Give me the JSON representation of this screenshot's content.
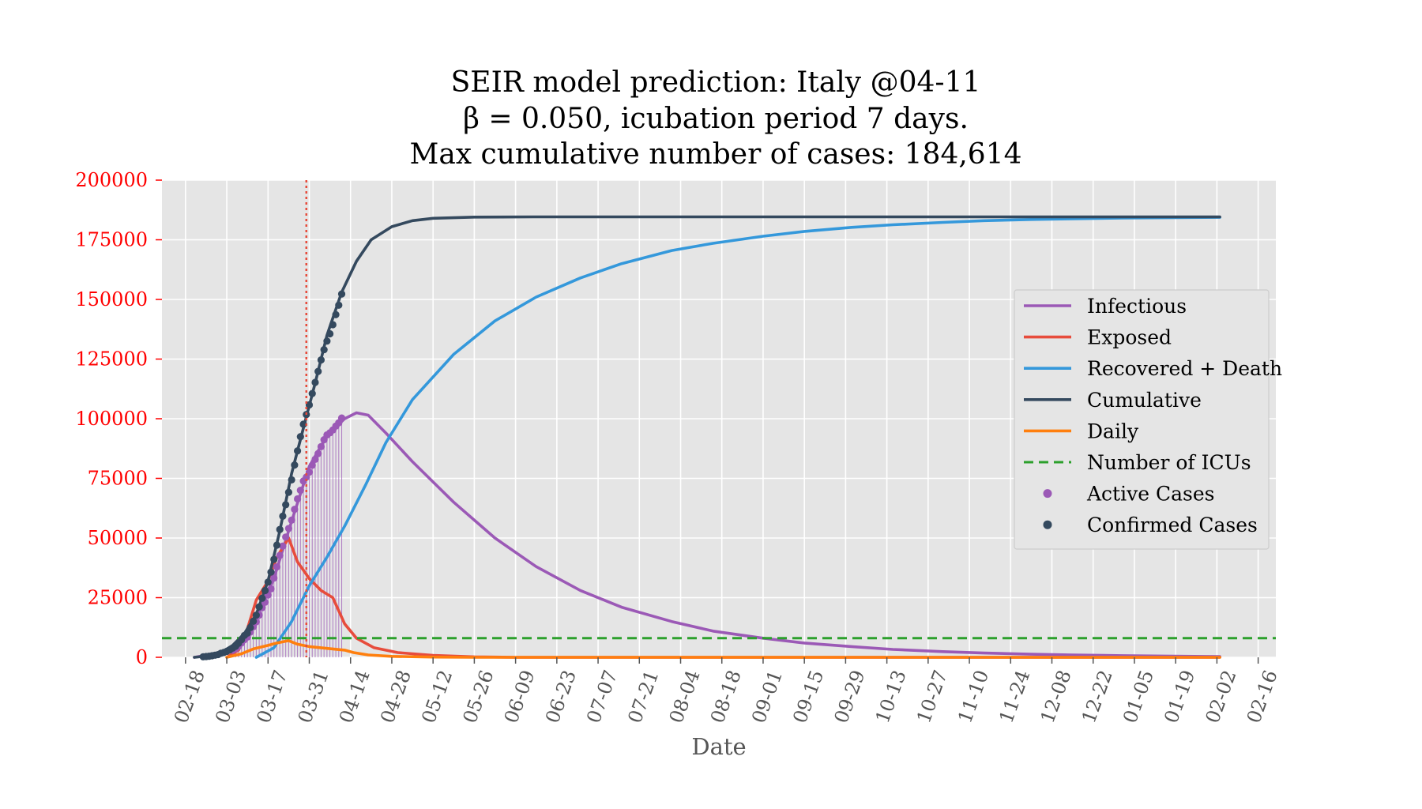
{
  "chart_data": {
    "type": "line",
    "title_lines": [
      "SEIR model prediction: Italy @04-11",
      "β = 0.050, icubation period 7 days.",
      "Max cumulative number of cases: 184,614"
    ],
    "xlabel": "Date",
    "ylabel": "",
    "x_tick_labels": [
      "02-18",
      "03-03",
      "03-17",
      "03-31",
      "04-14",
      "04-28",
      "05-12",
      "05-26",
      "06-09",
      "06-23",
      "07-07",
      "07-21",
      "08-04",
      "08-18",
      "09-01",
      "09-15",
      "09-29",
      "10-13",
      "10-27",
      "11-10",
      "11-24",
      "12-08",
      "12-22",
      "01-05",
      "01-19",
      "02-02",
      "02-16"
    ],
    "x_tick_start_date": "2020-02-18",
    "x_tick_interval_days": 14,
    "xlim": [
      "2020-02-10",
      "2021-02-22"
    ],
    "y_ticks": [
      0,
      25000,
      50000,
      75000,
      100000,
      125000,
      150000,
      175000,
      200000
    ],
    "ylim": [
      0,
      200000
    ],
    "grid": true,
    "legend_position": "center-right",
    "current_date": "2020-03-30",
    "icu_level": 8000,
    "series": [
      {
        "name": "Infectious",
        "color": "#9b59b6",
        "style": "solid",
        "points": [
          [
            "2020-02-21",
            0
          ],
          [
            "2020-03-01",
            2000
          ],
          [
            "2020-03-07",
            6000
          ],
          [
            "2020-03-13",
            16000
          ],
          [
            "2020-03-19",
            33000
          ],
          [
            "2020-03-25",
            57000
          ],
          [
            "2020-03-31",
            80000
          ],
          [
            "2020-04-06",
            93000
          ],
          [
            "2020-04-12",
            100000
          ],
          [
            "2020-04-16",
            102500
          ],
          [
            "2020-04-20",
            101500
          ],
          [
            "2020-04-26",
            94000
          ],
          [
            "2020-05-05",
            82000
          ],
          [
            "2020-05-19",
            65000
          ],
          [
            "2020-06-02",
            50000
          ],
          [
            "2020-06-16",
            38000
          ],
          [
            "2020-07-01",
            28000
          ],
          [
            "2020-07-15",
            21000
          ],
          [
            "2020-08-01",
            15000
          ],
          [
            "2020-08-15",
            11000
          ],
          [
            "2020-09-01",
            8000
          ],
          [
            "2020-09-15",
            6000
          ],
          [
            "2020-10-01",
            4500
          ],
          [
            "2020-10-15",
            3300
          ],
          [
            "2020-11-01",
            2400
          ],
          [
            "2020-11-15",
            1800
          ],
          [
            "2020-12-01",
            1300
          ],
          [
            "2020-12-15",
            1000
          ],
          [
            "2021-01-01",
            700
          ],
          [
            "2021-02-03",
            300
          ]
        ]
      },
      {
        "name": "Exposed",
        "color": "#e74c3c",
        "style": "solid",
        "points": [
          [
            "2020-03-03",
            0
          ],
          [
            "2020-03-07",
            3000
          ],
          [
            "2020-03-10",
            12000
          ],
          [
            "2020-03-13",
            24000
          ],
          [
            "2020-03-17",
            32000
          ],
          [
            "2020-03-20",
            42000
          ],
          [
            "2020-03-24",
            50000
          ],
          [
            "2020-03-27",
            40000
          ],
          [
            "2020-03-31",
            33000
          ],
          [
            "2020-04-04",
            28000
          ],
          [
            "2020-04-08",
            25000
          ],
          [
            "2020-04-12",
            14000
          ],
          [
            "2020-04-16",
            8000
          ],
          [
            "2020-04-22",
            4000
          ],
          [
            "2020-04-30",
            2000
          ],
          [
            "2020-05-12",
            800
          ],
          [
            "2020-05-26",
            200
          ],
          [
            "2020-06-09",
            0
          ],
          [
            "2021-02-03",
            0
          ]
        ]
      },
      {
        "name": "Recovered + Death",
        "color": "#3498db",
        "style": "solid",
        "points": [
          [
            "2020-03-13",
            0
          ],
          [
            "2020-03-19",
            4000
          ],
          [
            "2020-03-25",
            15000
          ],
          [
            "2020-03-31",
            30000
          ],
          [
            "2020-04-06",
            42000
          ],
          [
            "2020-04-12",
            55000
          ],
          [
            "2020-04-19",
            72000
          ],
          [
            "2020-04-26",
            90000
          ],
          [
            "2020-05-05",
            108000
          ],
          [
            "2020-05-19",
            127000
          ],
          [
            "2020-06-02",
            141000
          ],
          [
            "2020-06-16",
            151000
          ],
          [
            "2020-07-01",
            159000
          ],
          [
            "2020-07-15",
            165000
          ],
          [
            "2020-08-01",
            170500
          ],
          [
            "2020-08-15",
            173500
          ],
          [
            "2020-09-01",
            176500
          ],
          [
            "2020-09-15",
            178500
          ],
          [
            "2020-10-01",
            180200
          ],
          [
            "2020-10-15",
            181300
          ],
          [
            "2020-11-01",
            182300
          ],
          [
            "2020-11-15",
            183000
          ],
          [
            "2020-12-01",
            183500
          ],
          [
            "2020-12-15",
            183800
          ],
          [
            "2021-01-01",
            184100
          ],
          [
            "2021-02-03",
            184400
          ]
        ]
      },
      {
        "name": "Cumulative",
        "color": "#34495e",
        "style": "solid",
        "points": [
          [
            "2020-02-21",
            0
          ],
          [
            "2020-02-25",
            500
          ],
          [
            "2020-03-01",
            2000
          ],
          [
            "2020-03-05",
            5000
          ],
          [
            "2020-03-09",
            10000
          ],
          [
            "2020-03-13",
            18000
          ],
          [
            "2020-03-17",
            32000
          ],
          [
            "2020-03-21",
            53000
          ],
          [
            "2020-03-25",
            77000
          ],
          [
            "2020-03-29",
            96000
          ],
          [
            "2020-04-02",
            115000
          ],
          [
            "2020-04-06",
            135000
          ],
          [
            "2020-04-11",
            153000
          ],
          [
            "2020-04-16",
            166000
          ],
          [
            "2020-04-21",
            175000
          ],
          [
            "2020-04-28",
            180500
          ],
          [
            "2020-05-05",
            183000
          ],
          [
            "2020-05-12",
            184000
          ],
          [
            "2020-05-26",
            184500
          ],
          [
            "2020-06-15",
            184600
          ],
          [
            "2021-02-03",
            184614
          ]
        ]
      },
      {
        "name": "Daily",
        "color": "#ff7f0e",
        "style": "solid",
        "points": [
          [
            "2020-03-03",
            0
          ],
          [
            "2020-03-08",
            1500
          ],
          [
            "2020-03-12",
            3500
          ],
          [
            "2020-03-17",
            5000
          ],
          [
            "2020-03-20",
            6000
          ],
          [
            "2020-03-24",
            7000
          ],
          [
            "2020-03-27",
            5500
          ],
          [
            "2020-03-31",
            4500
          ],
          [
            "2020-04-04",
            4000
          ],
          [
            "2020-04-08",
            3500
          ],
          [
            "2020-04-12",
            3000
          ],
          [
            "2020-04-15",
            2000
          ],
          [
            "2020-04-20",
            1000
          ],
          [
            "2020-04-28",
            400
          ],
          [
            "2020-05-12",
            100
          ],
          [
            "2020-05-26",
            0
          ],
          [
            "2021-02-03",
            0
          ]
        ]
      },
      {
        "name": "Number of ICUs",
        "color": "#2ca02c",
        "style": "dashed",
        "points": [
          [
            "2020-02-10",
            8000
          ],
          [
            "2021-02-22",
            8000
          ]
        ]
      },
      {
        "name": "Active Cases",
        "color": "#9b59b6",
        "style": "markers",
        "stems": true,
        "points": [
          [
            "2020-03-05",
            3000
          ],
          [
            "2020-03-06",
            3600
          ],
          [
            "2020-03-07",
            4600
          ],
          [
            "2020-03-08",
            6000
          ],
          [
            "2020-03-09",
            7400
          ],
          [
            "2020-03-10",
            8500
          ],
          [
            "2020-03-11",
            10600
          ],
          [
            "2020-03-12",
            12800
          ],
          [
            "2020-03-13",
            14900
          ],
          [
            "2020-03-14",
            17700
          ],
          [
            "2020-03-15",
            20800
          ],
          [
            "2020-03-16",
            23100
          ],
          [
            "2020-03-17",
            26100
          ],
          [
            "2020-03-18",
            28700
          ],
          [
            "2020-03-19",
            33200
          ],
          [
            "2020-03-20",
            37900
          ],
          [
            "2020-03-21",
            42700
          ],
          [
            "2020-03-22",
            46600
          ],
          [
            "2020-03-23",
            50400
          ],
          [
            "2020-03-24",
            54000
          ],
          [
            "2020-03-25",
            57500
          ],
          [
            "2020-03-26",
            62000
          ],
          [
            "2020-03-27",
            66400
          ],
          [
            "2020-03-28",
            70000
          ],
          [
            "2020-03-29",
            73900
          ],
          [
            "2020-03-30",
            75500
          ],
          [
            "2020-03-31",
            77600
          ],
          [
            "2020-04-01",
            80500
          ],
          [
            "2020-04-02",
            83000
          ],
          [
            "2020-04-03",
            85400
          ],
          [
            "2020-04-04",
            88300
          ],
          [
            "2020-04-05",
            91200
          ],
          [
            "2020-04-06",
            93200
          ],
          [
            "2020-04-07",
            94100
          ],
          [
            "2020-04-08",
            95300
          ],
          [
            "2020-04-09",
            96900
          ],
          [
            "2020-04-10",
            98300
          ],
          [
            "2020-04-11",
            100300
          ]
        ]
      },
      {
        "name": "Confirmed Cases",
        "color": "#34495e",
        "style": "markers",
        "stems": false,
        "points": [
          [
            "2020-02-24",
            230
          ],
          [
            "2020-02-25",
            320
          ],
          [
            "2020-02-26",
            450
          ],
          [
            "2020-02-27",
            650
          ],
          [
            "2020-02-28",
            890
          ],
          [
            "2020-02-29",
            1130
          ],
          [
            "2020-03-01",
            1690
          ],
          [
            "2020-03-02",
            2040
          ],
          [
            "2020-03-03",
            2500
          ],
          [
            "2020-03-04",
            3090
          ],
          [
            "2020-03-05",
            3860
          ],
          [
            "2020-03-06",
            4640
          ],
          [
            "2020-03-07",
            5880
          ],
          [
            "2020-03-08",
            7380
          ],
          [
            "2020-03-09",
            9170
          ],
          [
            "2020-03-10",
            10150
          ],
          [
            "2020-03-11",
            12460
          ],
          [
            "2020-03-12",
            15110
          ],
          [
            "2020-03-13",
            17660
          ],
          [
            "2020-03-14",
            21160
          ],
          [
            "2020-03-15",
            24750
          ],
          [
            "2020-03-16",
            27980
          ],
          [
            "2020-03-17",
            31510
          ],
          [
            "2020-03-18",
            35710
          ],
          [
            "2020-03-19",
            41040
          ],
          [
            "2020-03-20",
            47020
          ],
          [
            "2020-03-21",
            53580
          ],
          [
            "2020-03-22",
            59140
          ],
          [
            "2020-03-23",
            63930
          ],
          [
            "2020-03-24",
            69180
          ],
          [
            "2020-03-25",
            74390
          ],
          [
            "2020-03-26",
            80590
          ],
          [
            "2020-03-27",
            86500
          ],
          [
            "2020-03-28",
            92470
          ],
          [
            "2020-03-29",
            97690
          ],
          [
            "2020-03-30",
            101740
          ],
          [
            "2020-03-31",
            105790
          ],
          [
            "2020-04-01",
            110570
          ],
          [
            "2020-04-02",
            115240
          ],
          [
            "2020-04-03",
            119830
          ],
          [
            "2020-04-04",
            124630
          ],
          [
            "2020-04-05",
            128950
          ],
          [
            "2020-04-06",
            132550
          ],
          [
            "2020-04-07",
            135590
          ],
          [
            "2020-04-08",
            139420
          ],
          [
            "2020-04-09",
            143630
          ],
          [
            "2020-04-10",
            147580
          ],
          [
            "2020-04-11",
            152270
          ]
        ]
      }
    ]
  }
}
